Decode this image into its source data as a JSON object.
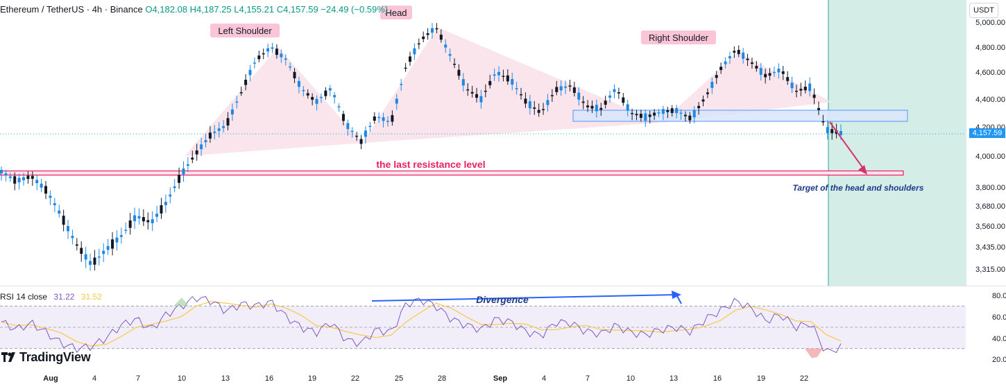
{
  "header": {
    "symbol": "Ethereum / TetherUS · 4h · Binance",
    "ohlc": "O4,182.08  H4,187.25  L4,155.21  C4,157.59  −24.49 (−0.59%)"
  },
  "currency_label": "USDT",
  "last_price_label": "4,157.59",
  "rsi_header": {
    "label": "RSI 14 close",
    "rsi_value": "31.22",
    "ma_value": "31.52"
  },
  "brand": "TradingView",
  "annotations": {
    "left_shoulder": "Left Shoulder",
    "head": "Head",
    "right_shoulder": "Right Shoulder",
    "resistance": "the last resistance level",
    "target": "Target of the head and shoulders",
    "divergence": "Divergence"
  },
  "colors": {
    "bull": "#1e88e5",
    "bear": "#131722",
    "resistance": "#e91e63",
    "shoulder_fill": "#f8e1e7",
    "zone": "#dbe7fb",
    "projection": "#cfece4",
    "rsi": "#7e57c2",
    "rsi_ma": "#f7c948",
    "divergence": "#2962ff"
  },
  "chart_data": [
    {
      "type": "line",
      "title": "Ethereum / TetherUS · 4h · Binance",
      "x_ticks": [
        "Aug",
        "4",
        "7",
        "10",
        "13",
        "16",
        "19",
        "22",
        "25",
        "28",
        "Sep",
        "4",
        "7",
        "10",
        "13",
        "16",
        "19",
        "22"
      ],
      "y_ticks": [
        "5,000.00",
        "4,800.00",
        "4,600.00",
        "4,400.00",
        "4,200.00",
        "4,000.00",
        "3,800.00",
        "3,680.00",
        "3,560.00",
        "3,435.00",
        "3,315.00"
      ],
      "series": [
        {
          "x": [
            0,
            1,
            2,
            3,
            4,
            5,
            6,
            7,
            8,
            9,
            10,
            11,
            12,
            13,
            14,
            15,
            16,
            17,
            18,
            19,
            20,
            21,
            22,
            23,
            24,
            25,
            26,
            27,
            28,
            29,
            30,
            31,
            32,
            33,
            34,
            35,
            36,
            37,
            38,
            39,
            40,
            41,
            42,
            43,
            44,
            45,
            46,
            47,
            48,
            49,
            50,
            51,
            52,
            53,
            54,
            55,
            56
          ],
          "y": [
            3900,
            3840,
            3870,
            3780,
            3620,
            3450,
            3340,
            3420,
            3500,
            3620,
            3580,
            3700,
            3880,
            4020,
            4150,
            4210,
            4450,
            4700,
            4800,
            4700,
            4480,
            4380,
            4480,
            4220,
            4100,
            4280,
            4230,
            4650,
            4860,
            4960,
            4720,
            4480,
            4400,
            4600,
            4540,
            4380,
            4300,
            4470,
            4500,
            4350,
            4330,
            4480,
            4300,
            4270,
            4310,
            4320,
            4260,
            4420,
            4630,
            4780,
            4680,
            4570,
            4620,
            4460,
            4490,
            4180,
            4157.59
          ]
        }
      ],
      "resistance_level": 3900,
      "supply_zone": [
        4220,
        4300
      ],
      "target_level": 3900,
      "last_price": 4157.59
    },
    {
      "type": "line",
      "title": "RSI 14 close",
      "y_ticks": [
        "80.00",
        "60.00",
        "40.00",
        "20.00"
      ],
      "bands": [
        30,
        50,
        70
      ],
      "series": [
        {
          "x": [
            0,
            1,
            2,
            3,
            4,
            5,
            6,
            7,
            8,
            9,
            10,
            11,
            12,
            13,
            14,
            15,
            16,
            17,
            18,
            19,
            20,
            21,
            22,
            23,
            24,
            25,
            26,
            27,
            28,
            29,
            30,
            31,
            32,
            33,
            34,
            35,
            36,
            37,
            38,
            39,
            40,
            41,
            42,
            43,
            44,
            45,
            46,
            47,
            48,
            49,
            50,
            51,
            52,
            53,
            54,
            55,
            56
          ],
          "y": [
            55,
            48,
            54,
            45,
            35,
            30,
            32,
            40,
            52,
            58,
            48,
            62,
            70,
            78,
            75,
            65,
            72,
            70,
            74,
            60,
            50,
            45,
            55,
            38,
            35,
            48,
            45,
            72,
            76,
            70,
            58,
            52,
            48,
            58,
            55,
            46,
            42,
            55,
            54,
            46,
            44,
            52,
            45,
            43,
            48,
            50,
            46,
            58,
            66,
            75,
            68,
            56,
            62,
            50,
            54,
            26,
            31.22
          ]
        }
      ],
      "rsi": 31.22,
      "rsi_ma": 31.52
    }
  ]
}
